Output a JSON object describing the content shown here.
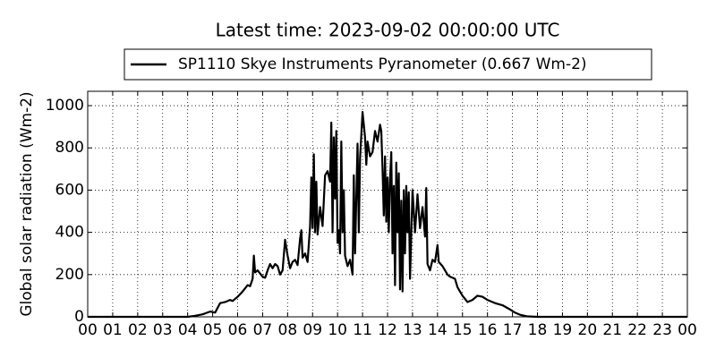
{
  "chart_data": {
    "type": "line",
    "title": "Latest time: 2023-09-02 00:00:00 UTC",
    "y_label": "Global solar radiation (Wm-2)",
    "legend_position": "top",
    "grid": true,
    "x": [
      0,
      4,
      4.3,
      4.6,
      4.9,
      5.1,
      5.3,
      5.5,
      5.7,
      5.8,
      6.0,
      6.2,
      6.4,
      6.5,
      6.6,
      6.65,
      6.7,
      6.8,
      7.0,
      7.1,
      7.2,
      7.3,
      7.4,
      7.5,
      7.6,
      7.7,
      7.8,
      7.9,
      8.0,
      8.1,
      8.2,
      8.3,
      8.4,
      8.5,
      8.55,
      8.6,
      8.7,
      8.8,
      8.9,
      8.95,
      9.0,
      9.05,
      9.1,
      9.15,
      9.2,
      9.3,
      9.4,
      9.5,
      9.6,
      9.7,
      9.75,
      9.8,
      9.85,
      9.9,
      9.95,
      10.0,
      10.05,
      10.1,
      10.15,
      10.2,
      10.25,
      10.3,
      10.4,
      10.5,
      10.6,
      10.65,
      10.7,
      10.8,
      10.85,
      10.9,
      11.0,
      11.1,
      11.15,
      11.2,
      11.3,
      11.4,
      11.5,
      11.6,
      11.7,
      11.75,
      11.8,
      11.85,
      11.9,
      11.95,
      12.0,
      12.05,
      12.1,
      12.15,
      12.2,
      12.25,
      12.3,
      12.35,
      12.4,
      12.45,
      12.5,
      12.55,
      12.6,
      12.65,
      12.7,
      12.75,
      12.8,
      12.85,
      12.9,
      13.0,
      13.1,
      13.2,
      13.3,
      13.4,
      13.5,
      13.55,
      13.6,
      13.7,
      13.8,
      13.9,
      14.0,
      14.05,
      14.2,
      14.4,
      14.5,
      14.7,
      14.8,
      15.0,
      15.2,
      15.4,
      15.6,
      15.8,
      16.0,
      16.3,
      16.6,
      16.9,
      17.1,
      17.3,
      17.6,
      18.0,
      24
    ],
    "series": [
      {
        "name": "SP1110 Skye Instruments Pyranometer (0.667 Wm-2)",
        "color": "#000000",
        "values": [
          0,
          0,
          5,
          12,
          25,
          20,
          65,
          70,
          80,
          75,
          95,
          120,
          150,
          145,
          180,
          290,
          210,
          220,
          190,
          185,
          220,
          250,
          230,
          250,
          240,
          200,
          220,
          365,
          290,
          230,
          260,
          270,
          245,
          370,
          410,
          280,
          300,
          260,
          430,
          660,
          420,
          770,
          400,
          640,
          390,
          520,
          430,
          670,
          690,
          640,
          920,
          400,
          850,
          560,
          880,
          350,
          410,
          300,
          830,
          400,
          600,
          290,
          240,
          270,
          200,
          670,
          300,
          820,
          400,
          750,
          970,
          850,
          720,
          830,
          760,
          780,
          880,
          830,
          910,
          880,
          700,
          480,
          760,
          450,
          660,
          400,
          650,
          780,
          300,
          620,
          150,
          730,
          400,
          680,
          130,
          550,
          120,
          600,
          300,
          620,
          400,
          590,
          180,
          600,
          400,
          580,
          420,
          520,
          380,
          610,
          250,
          220,
          270,
          260,
          340,
          260,
          240,
          200,
          190,
          180,
          140,
          100,
          70,
          80,
          100,
          95,
          80,
          65,
          55,
          35,
          20,
          10,
          2,
          0,
          0
        ]
      }
    ],
    "xlim": [
      0,
      24
    ],
    "xticks": [
      {
        "value": 0,
        "label": "00"
      },
      {
        "value": 1,
        "label": "01"
      },
      {
        "value": 2,
        "label": "02"
      },
      {
        "value": 3,
        "label": "03"
      },
      {
        "value": 4,
        "label": "04"
      },
      {
        "value": 5,
        "label": "05"
      },
      {
        "value": 6,
        "label": "06"
      },
      {
        "value": 7,
        "label": "07"
      },
      {
        "value": 8,
        "label": "08"
      },
      {
        "value": 9,
        "label": "09"
      },
      10,
      11,
      12,
      13,
      14,
      15,
      16,
      17,
      18,
      19,
      20,
      21,
      22,
      23,
      {
        "value": 24,
        "label": "00"
      }
    ],
    "ylim": [
      0,
      1068
    ],
    "yticks": [
      0,
      200,
      400,
      600,
      800,
      1000
    ]
  }
}
